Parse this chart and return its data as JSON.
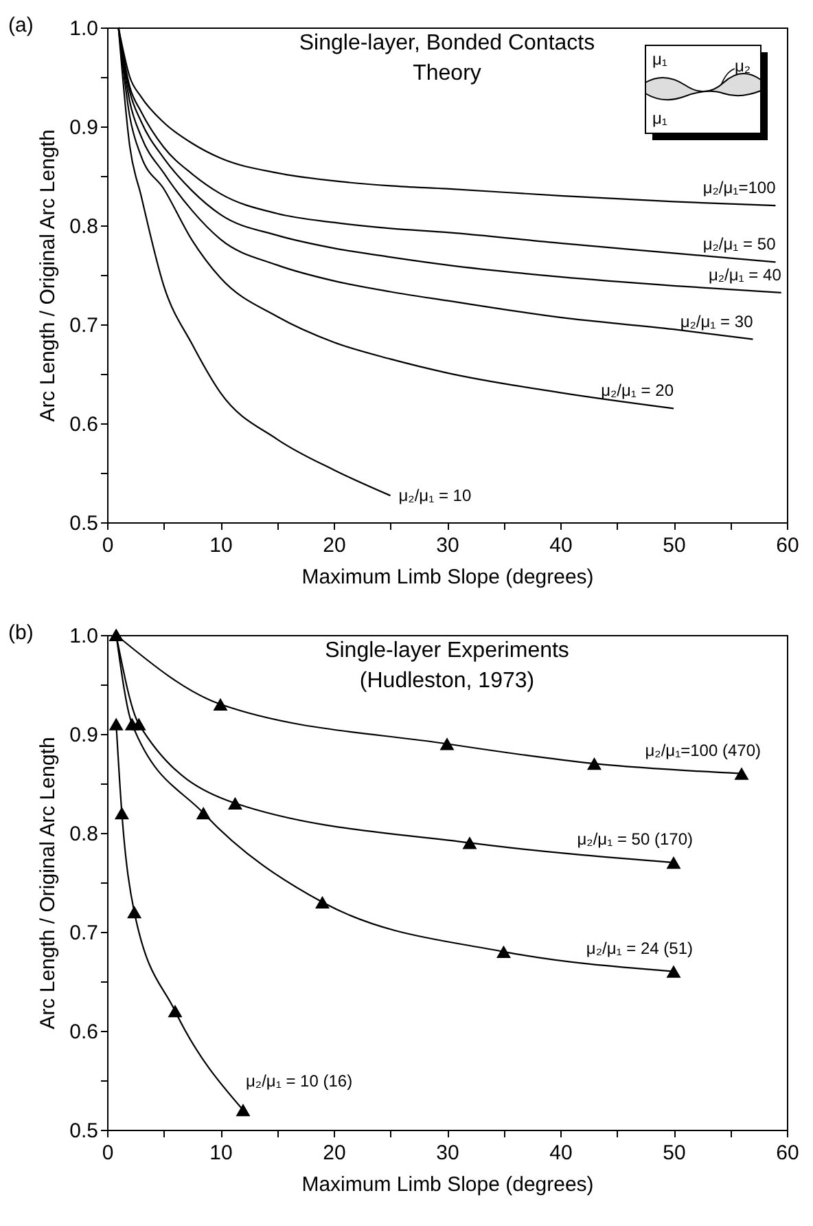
{
  "chart_data": [
    {
      "type": "line",
      "title": "Single-layer, Bonded Contacts\nTheory",
      "xlabel": "Maximum Limb Slope (degrees)",
      "ylabel": "Arc Length / Original Arc Length",
      "annotations": [
        "(a)",
        "μ₁",
        "μ₂",
        "μ₁"
      ],
      "xlim": [
        0,
        60
      ],
      "ylim": [
        0.5,
        1.0
      ],
      "xticks": [
        0,
        {
          "value": 5,
          "label": null
        },
        10,
        {
          "value": 15,
          "label": null
        },
        20,
        {
          "value": 25,
          "label": null
        },
        30,
        {
          "value": 35,
          "label": null
        },
        40,
        {
          "value": 45,
          "label": null
        },
        50,
        {
          "value": 55,
          "label": null
        },
        60
      ],
      "yticks": [
        0.5,
        {
          "value": 0.55,
          "label": null
        },
        0.6,
        {
          "value": 0.65,
          "label": null
        },
        0.7,
        {
          "value": 0.75,
          "label": null
        },
        0.8,
        {
          "value": 0.85,
          "label": null
        },
        0.9,
        {
          "value": 0.95,
          "label": null
        },
        {
          "value": 1.0,
          "label": "1.0"
        }
      ],
      "grid": false,
      "series": [
        {
          "name": "μ₂/μ₁=100",
          "color": "#000000",
          "x": [
            1,
            2,
            3,
            5,
            7.5,
            10,
            15,
            20,
            25,
            30,
            40,
            50,
            59
          ],
          "values": [
            1.0,
            0.95,
            0.93,
            0.904,
            0.883,
            0.868,
            0.853,
            0.845,
            0.84,
            0.837,
            0.83,
            0.824,
            0.82
          ]
        },
        {
          "name": "μ₂/μ₁ = 50",
          "color": "#000000",
          "x": [
            1,
            2,
            3,
            5,
            7.5,
            10,
            15,
            20,
            25,
            30,
            40,
            50,
            59
          ],
          "values": [
            1.0,
            0.94,
            0.915,
            0.879,
            0.852,
            0.832,
            0.812,
            0.803,
            0.797,
            0.793,
            0.782,
            0.772,
            0.763
          ]
        },
        {
          "name": "μ₂/μ₁ = 40",
          "color": "#000000",
          "x": [
            1,
            2,
            3,
            5,
            7.5,
            10,
            15,
            20,
            25,
            30,
            40,
            50,
            59.5
          ],
          "values": [
            1.0,
            0.935,
            0.905,
            0.868,
            0.835,
            0.811,
            0.79,
            0.777,
            0.768,
            0.76,
            0.748,
            0.739,
            0.732
          ]
        },
        {
          "name": "μ₂/μ₁ = 30",
          "color": "#000000",
          "x": [
            1,
            2,
            3,
            5,
            7.5,
            10,
            15,
            20,
            25,
            30,
            40,
            50,
            57
          ],
          "values": [
            1.0,
            0.925,
            0.89,
            0.853,
            0.815,
            0.786,
            0.76,
            0.744,
            0.733,
            0.724,
            0.707,
            0.695,
            0.685
          ]
        },
        {
          "name": "μ₂/μ₁ = 20",
          "color": "#000000",
          "x": [
            1,
            2,
            3,
            5,
            7.5,
            10,
            15,
            20,
            25,
            30,
            40,
            50
          ],
          "values": [
            1.0,
            0.91,
            0.87,
            0.837,
            0.785,
            0.747,
            0.708,
            0.682,
            0.665,
            0.651,
            0.631,
            0.615
          ]
        },
        {
          "name": "μ₂/μ₁ = 10",
          "color": "#000000",
          "x": [
            1,
            2,
            3,
            5,
            7.5,
            10,
            15,
            20,
            25
          ],
          "values": [
            1.0,
            0.88,
            0.83,
            0.739,
            0.68,
            0.631,
            0.584,
            0.553,
            0.527
          ]
        }
      ]
    },
    {
      "type": "line",
      "title": "Single-layer Experiments\n(Hudleston, 1973)",
      "xlabel": "Maximum Limb Slope (degrees)",
      "ylabel": "Arc Length / Original Arc Length",
      "annotations": [
        "(b)"
      ],
      "xlim": [
        0,
        60
      ],
      "ylim": [
        0.5,
        1.0
      ],
      "xticks": [
        0,
        {
          "value": 5,
          "label": null
        },
        10,
        {
          "value": 15,
          "label": null
        },
        20,
        {
          "value": 25,
          "label": null
        },
        30,
        {
          "value": 35,
          "label": null
        },
        40,
        {
          "value": 45,
          "label": null
        },
        50,
        {
          "value": 55,
          "label": null
        },
        60
      ],
      "yticks": [
        0.5,
        {
          "value": 0.55,
          "label": null
        },
        0.6,
        {
          "value": 0.65,
          "label": null
        },
        0.7,
        {
          "value": 0.75,
          "label": null
        },
        0.8,
        {
          "value": 0.85,
          "label": null
        },
        0.9,
        {
          "value": 0.95,
          "label": null
        },
        {
          "value": 1.0,
          "label": "1.0"
        }
      ],
      "grid": false,
      "marker": "triangle",
      "series": [
        {
          "name": "μ₂/μ₁=100 (470)",
          "color": "#000000",
          "x": [
            0.8,
            10,
            30,
            43,
            56
          ],
          "values": [
            1.0,
            0.93,
            0.89,
            0.87,
            0.86
          ]
        },
        {
          "name": "μ₂/μ₁ = 50 (170)",
          "color": "#000000",
          "x": [
            0.8,
            2.8,
            11.3,
            32,
            50
          ],
          "values": [
            1.0,
            0.91,
            0.83,
            0.79,
            0.77
          ]
        },
        {
          "name": "μ₂/μ₁ = 24 (51)",
          "color": "#000000",
          "x": [
            0.8,
            2.2,
            8.5,
            19,
            35,
            50
          ],
          "values": [
            1.0,
            0.91,
            0.82,
            0.73,
            0.68,
            0.66
          ]
        },
        {
          "name": "μ₂/μ₁ = 10 (16)",
          "color": "#000000",
          "x": [
            0.8,
            1.3,
            2.4,
            6,
            12
          ],
          "values": [
            0.91,
            0.82,
            0.72,
            0.62,
            0.52
          ]
        }
      ]
    }
  ]
}
